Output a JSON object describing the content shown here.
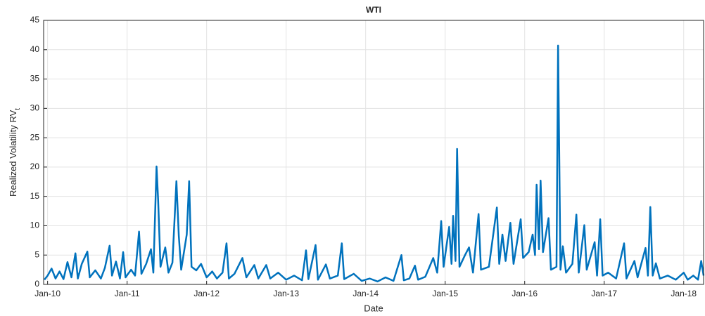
{
  "chart_data": {
    "type": "line",
    "title": "WTI",
    "xlabel": "Date",
    "ylabel": "Realized Volatility RV",
    "ylabel_subscript": "t",
    "x": [
      2009.96,
      2010.0,
      2010.05,
      2010.1,
      2010.15,
      2010.2,
      2010.25,
      2010.3,
      2010.35,
      2010.38,
      2010.43,
      2010.5,
      2010.53,
      2010.6,
      2010.67,
      2010.72,
      2010.78,
      2010.81,
      2010.86,
      2010.91,
      2010.95,
      2010.98,
      2011.05,
      2011.1,
      2011.15,
      2011.18,
      2011.24,
      2011.3,
      2011.33,
      2011.37,
      2011.39,
      2011.42,
      2011.48,
      2011.52,
      2011.57,
      2011.62,
      2011.65,
      2011.68,
      2011.75,
      2011.78,
      2011.81,
      2011.87,
      2011.93,
      2012.0,
      2012.07,
      2012.13,
      2012.2,
      2012.25,
      2012.28,
      2012.35,
      2012.45,
      2012.5,
      2012.6,
      2012.65,
      2012.75,
      2012.8,
      2012.9,
      2013.0,
      2013.1,
      2013.2,
      2013.25,
      2013.28,
      2013.37,
      2013.4,
      2013.5,
      2013.55,
      2013.65,
      2013.7,
      2013.73,
      2013.85,
      2013.95,
      2014.05,
      2014.15,
      2014.25,
      2014.35,
      2014.45,
      2014.48,
      2014.55,
      2014.62,
      2014.66,
      2014.75,
      2014.85,
      2014.9,
      2014.95,
      2014.98,
      2015.05,
      2015.08,
      2015.1,
      2015.13,
      2015.15,
      2015.18,
      2015.25,
      2015.3,
      2015.35,
      2015.42,
      2015.45,
      2015.55,
      2015.65,
      2015.68,
      2015.72,
      2015.76,
      2015.82,
      2015.86,
      2015.95,
      2015.98,
      2016.05,
      2016.1,
      2016.13,
      2016.15,
      2016.18,
      2016.2,
      2016.23,
      2016.3,
      2016.33,
      2016.4,
      2016.42,
      2016.45,
      2016.48,
      2016.52,
      2016.6,
      2016.65,
      2016.68,
      2016.75,
      2016.78,
      2016.88,
      2016.91,
      2016.95,
      2016.98,
      2017.05,
      2017.15,
      2017.25,
      2017.28,
      2017.38,
      2017.42,
      2017.52,
      2017.55,
      2017.58,
      2017.61,
      2017.65,
      2017.7,
      2017.8,
      2017.9,
      2018.0,
      2018.05,
      2018.12,
      2018.18,
      2018.22,
      2018.25
    ],
    "series": [
      {
        "color": "#0072bd",
        "values": [
          0.8,
          1.5,
          2.7,
          1.0,
          2.2,
          0.9,
          3.8,
          1.2,
          5.3,
          1.0,
          3.5,
          5.6,
          1.2,
          2.4,
          1.0,
          2.8,
          6.6,
          1.5,
          3.9,
          1.0,
          5.5,
          1.2,
          2.5,
          1.5,
          9.0,
          1.8,
          3.5,
          6.0,
          2.0,
          20.1,
          14.4,
          3.0,
          6.3,
          2.0,
          3.7,
          17.6,
          8.3,
          2.5,
          8.5,
          17.6,
          3.0,
          2.4,
          3.5,
          1.2,
          2.2,
          1.0,
          2.0,
          7.0,
          1.0,
          1.8,
          4.5,
          1.2,
          3.3,
          1.0,
          3.3,
          1.0,
          2.0,
          0.8,
          1.5,
          0.7,
          5.8,
          0.9,
          6.7,
          0.8,
          3.4,
          1.0,
          1.5,
          7.0,
          0.9,
          1.8,
          0.6,
          1.0,
          0.5,
          1.2,
          0.6,
          5.0,
          0.7,
          1.0,
          3.2,
          0.8,
          1.3,
          4.5,
          2.0,
          10.8,
          3.0,
          9.8,
          3.5,
          11.7,
          4.0,
          23.1,
          3.0,
          5.0,
          6.3,
          2.0,
          12.0,
          2.5,
          3.0,
          13.1,
          3.5,
          8.5,
          4.0,
          10.5,
          3.5,
          11.1,
          4.5,
          5.5,
          8.5,
          5.0,
          17.0,
          6.0,
          17.7,
          5.5,
          11.3,
          2.5,
          3.0,
          40.7,
          2.5,
          6.5,
          2.0,
          3.5,
          11.9,
          2.0,
          10.1,
          2.5,
          7.2,
          1.5,
          11.1,
          1.5,
          2.0,
          1.0,
          7.0,
          1.0,
          4.0,
          1.2,
          6.2,
          1.5,
          13.2,
          1.5,
          3.6,
          1.0,
          1.5,
          0.8,
          2.0,
          0.8,
          1.5,
          0.8,
          4.0,
          1.5
        ]
      }
    ],
    "xlim": [
      2009.95,
      2018.25
    ],
    "xticks": [
      {
        "value": 2010,
        "label": "Jan-10"
      },
      {
        "value": 2011,
        "label": "Jan-11"
      },
      {
        "value": 2012,
        "label": "Jan-12"
      },
      {
        "value": 2013,
        "label": "Jan-13"
      },
      {
        "value": 2014,
        "label": "Jan-14"
      },
      {
        "value": 2015,
        "label": "Jan-15"
      },
      {
        "value": 2016,
        "label": "Jan-16"
      },
      {
        "value": 2017,
        "label": "Jan-17"
      },
      {
        "value": 2018,
        "label": "Jan-18"
      }
    ],
    "ylim": [
      0,
      45
    ],
    "yticks": [
      0,
      5,
      10,
      15,
      20,
      25,
      30,
      35,
      40,
      45
    ],
    "grid": true
  }
}
